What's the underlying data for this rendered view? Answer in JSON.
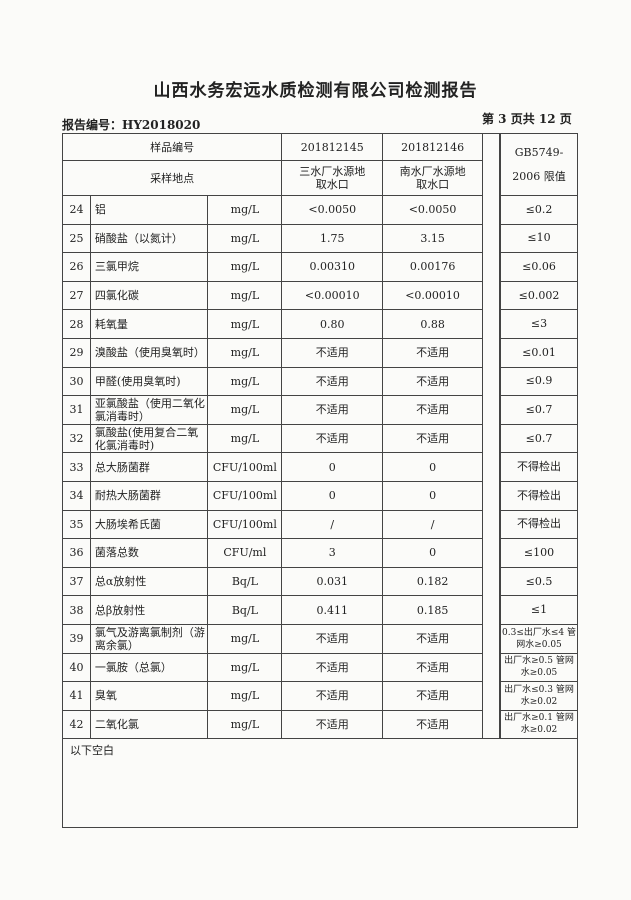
{
  "title": "山西水务宏远水质检测有限公司检测报告",
  "report_no": "报告编号：HY2018020",
  "page_info": "第 3 页共 12 页",
  "header": {
    "sample_no_label": "样品编号",
    "sample1": "201812145",
    "sample2": "201812146",
    "site_label": "采样地点",
    "site1": "三水厂水源地取水口",
    "site2": "南水厂水源地取水口",
    "limit_label_1": "GB5749-",
    "limit_label_2": "2006 限值"
  },
  "rows": [
    {
      "no": "24",
      "name": "铝",
      "unit": "mg/L",
      "v1": "<0.0050",
      "v2": "<0.0050",
      "limit": "≤0.2"
    },
    {
      "no": "25",
      "name": "硝酸盐（以氮计）",
      "unit": "mg/L",
      "v1": "1.75",
      "v2": "3.15",
      "limit": "≤10"
    },
    {
      "no": "26",
      "name": "三氯甲烷",
      "unit": "mg/L",
      "v1": "0.00310",
      "v2": "0.00176",
      "limit": "≤0.06"
    },
    {
      "no": "27",
      "name": "四氯化碳",
      "unit": "mg/L",
      "v1": "<0.00010",
      "v2": "<0.00010",
      "limit": "≤0.002"
    },
    {
      "no": "28",
      "name": "耗氧量",
      "unit": "mg/L",
      "v1": "0.80",
      "v2": "0.88",
      "limit": "≤3"
    },
    {
      "no": "29",
      "name": "溴酸盐（使用臭氧时）",
      "unit": "mg/L",
      "v1": "不适用",
      "v2": "不适用",
      "limit": "≤0.01"
    },
    {
      "no": "30",
      "name": "甲醛(使用臭氧时)",
      "unit": "mg/L",
      "v1": "不适用",
      "v2": "不适用",
      "limit": "≤0.9"
    },
    {
      "no": "31",
      "name": "亚氯酸盐（使用二氧化氯消毒时）",
      "unit": "mg/L",
      "v1": "不适用",
      "v2": "不适用",
      "limit": "≤0.7"
    },
    {
      "no": "32",
      "name": "氯酸盐(使用复合二氧化氯消毒时)",
      "unit": "mg/L",
      "v1": "不适用",
      "v2": "不适用",
      "limit": "≤0.7"
    },
    {
      "no": "33",
      "name": "总大肠菌群",
      "unit": "CFU/100ml",
      "v1": "0",
      "v2": "0",
      "limit": "不得检出"
    },
    {
      "no": "34",
      "name": "耐热大肠菌群",
      "unit": "CFU/100ml",
      "v1": "0",
      "v2": "0",
      "limit": "不得检出"
    },
    {
      "no": "35",
      "name": "大肠埃希氏菌",
      "unit": "CFU/100ml",
      "v1": "/",
      "v2": "/",
      "limit": "不得检出"
    },
    {
      "no": "36",
      "name": "菌落总数",
      "unit": "CFU/ml",
      "v1": "3",
      "v2": "0",
      "limit": "≤100"
    },
    {
      "no": "37",
      "name": "总α放射性",
      "unit": "Bq/L",
      "v1": "0.031",
      "v2": "0.182",
      "limit": "≤0.5"
    },
    {
      "no": "38",
      "name": "总β放射性",
      "unit": "Bq/L",
      "v1": "0.411",
      "v2": "0.185",
      "limit": "≤1"
    },
    {
      "no": "39",
      "name": "氯气及游离氯制剂（游离余氯）",
      "unit": "mg/L",
      "v1": "不适用",
      "v2": "不适用",
      "limit": "0.3≤出厂水≤4 管网水≥0.05"
    },
    {
      "no": "40",
      "name": "一氯胺（总氯）",
      "unit": "mg/L",
      "v1": "不适用",
      "v2": "不适用",
      "limit": "出厂水≥0.5 管网水≥0.05"
    },
    {
      "no": "41",
      "name": "臭氧",
      "unit": "mg/L",
      "v1": "不适用",
      "v2": "不适用",
      "limit": "出厂水≤0.3 管网水≥0.02"
    },
    {
      "no": "42",
      "name": "二氧化氯",
      "unit": "mg/L",
      "v1": "不适用",
      "v2": "不适用",
      "limit": "出厂水≥0.1 管网水≥0.02"
    }
  ],
  "footer_note": "以下空白"
}
